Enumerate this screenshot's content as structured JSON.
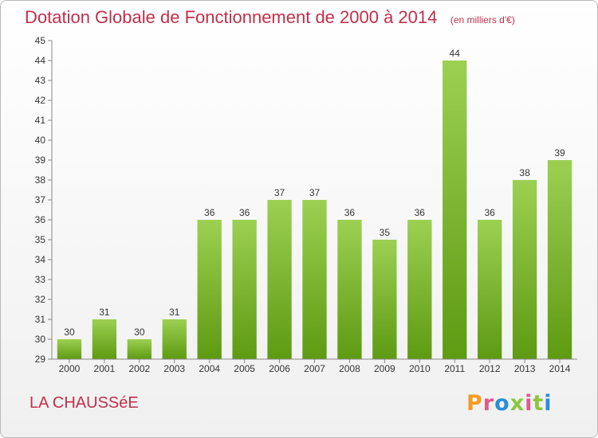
{
  "header": {
    "title": "Dotation Globale de Fonctionnement de 2000 à 2014",
    "subtitle": "(en milliers d'€)"
  },
  "footer": {
    "commune": "LA CHAUSSéE",
    "logo": "Proxiti"
  },
  "colors": {
    "title": "#c0304a",
    "bar_top": "#9cd052",
    "bar_bottom": "#5e9a12",
    "logo_letters": [
      "#f39c1f",
      "#e05a8a",
      "#2a8fd6",
      "#8cc63f",
      "#e05a8a",
      "#8cc63f",
      "#2a8fd6"
    ]
  },
  "chart_data": {
    "type": "bar",
    "categories": [
      "2000",
      "2001",
      "2002",
      "2003",
      "2004",
      "2005",
      "2006",
      "2007",
      "2008",
      "2009",
      "2010",
      "2011",
      "2012",
      "2013",
      "2014"
    ],
    "values": [
      30,
      31,
      30,
      31,
      36,
      36,
      37,
      37,
      36,
      35,
      36,
      44,
      36,
      38,
      39
    ],
    "title": "Dotation Globale de Fonctionnement de 2000 à 2014",
    "subtitle": "(en milliers d'€)",
    "ylim": [
      29,
      45
    ],
    "yticks": [
      29,
      30,
      31,
      32,
      33,
      34,
      35,
      36,
      37,
      38,
      39,
      40,
      41,
      42,
      43,
      44,
      45
    ],
    "grid": false,
    "legend": "none"
  }
}
